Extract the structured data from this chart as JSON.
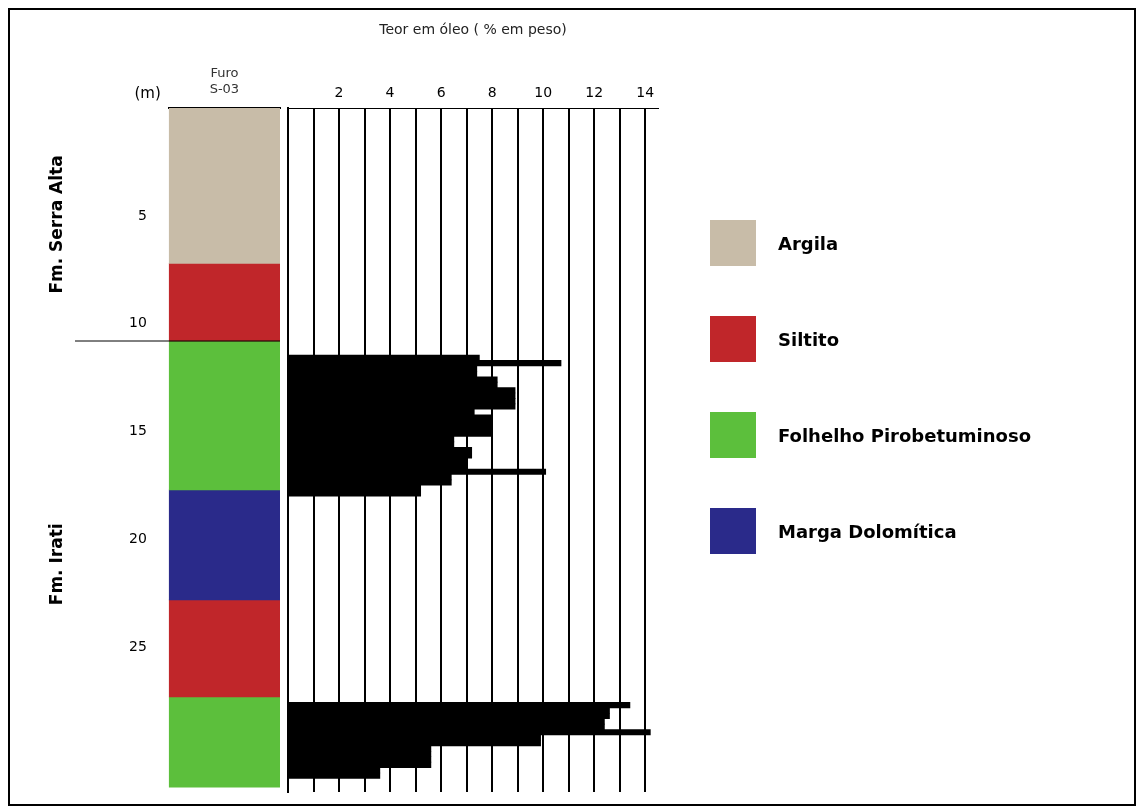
{
  "chart_data": [
    {
      "type": "bar",
      "stacked": true,
      "categories": [
        "Furo S-03"
      ],
      "ylabel": "(m)",
      "ylim": [
        31.5,
        0
      ],
      "yticks": [
        5,
        10,
        15,
        20,
        25
      ],
      "legend": "right",
      "series": [
        {
          "name": "Argila",
          "color": "#c8bca8",
          "values": [
            7.2
          ]
        },
        {
          "name": "Siltito",
          "color": "#c0262a",
          "values": [
            3.6
          ]
        },
        {
          "name": "Folhelho Pirobetuminoso",
          "color": "#5cbf3c",
          "values": [
            6.9
          ]
        },
        {
          "name": "Marga Dolomítica",
          "color": "#2a2a8a",
          "values": [
            5.1
          ]
        },
        {
          "color": "#c0262a",
          "values": [
            4.5
          ]
        },
        {
          "color": "#5cbf3c",
          "values": [
            4.2
          ]
        }
      ],
      "ref_lines": [
        {
          "axis": "y",
          "value": 10.8
        }
      ],
      "annotations": [
        "Fm. Serra Alta",
        "Fm. Irati"
      ]
    },
    {
      "type": "bar",
      "orientation": "horizontal",
      "xlabel": "Teor em óleo ( % em peso)",
      "color": "#000000",
      "x": [
        11.5,
        11.75,
        12.0,
        12.25,
        12.5,
        12.75,
        13.0,
        13.25,
        13.5,
        13.75,
        14.0,
        14.25,
        14.5,
        14.75,
        15.0,
        15.25,
        15.5,
        15.75,
        16.0,
        16.25,
        16.5,
        16.75,
        17.0,
        17.25,
        17.5,
        17.75,
        27.5,
        27.75,
        28.0,
        28.25,
        28.5,
        28.75,
        29.0,
        29.25,
        29.5,
        29.75,
        30.0,
        30.25,
        30.5,
        30.75
      ],
      "values": [
        7.5,
        10.7,
        7.4,
        7.4,
        8.2,
        8.2,
        8.9,
        8.9,
        8.9,
        8.9,
        7.3,
        8.0,
        8.0,
        8.0,
        8.0,
        6.5,
        6.5,
        7.2,
        7.2,
        7.0,
        7.0,
        10.1,
        6.4,
        6.4,
        5.2,
        5.2,
        13.4,
        12.6,
        12.6,
        12.4,
        12.4,
        14.2,
        9.9,
        9.9,
        5.6,
        5.6,
        5.6,
        5.6,
        3.6,
        3.6
      ],
      "xlim": [
        0,
        14.5
      ],
      "xticks": [
        {
          "value": 1,
          "label": null
        },
        2,
        {
          "value": 3,
          "label": null
        },
        4,
        {
          "value": 5,
          "label": null
        },
        6,
        {
          "value": 7,
          "label": null
        },
        8,
        {
          "value": 9,
          "label": null
        },
        10,
        {
          "value": 11,
          "label": null
        },
        12,
        {
          "value": 13,
          "label": null
        },
        14
      ],
      "ylim": [
        31.5,
        0
      ],
      "grid": "x",
      "tick_labels": "x"
    }
  ]
}
